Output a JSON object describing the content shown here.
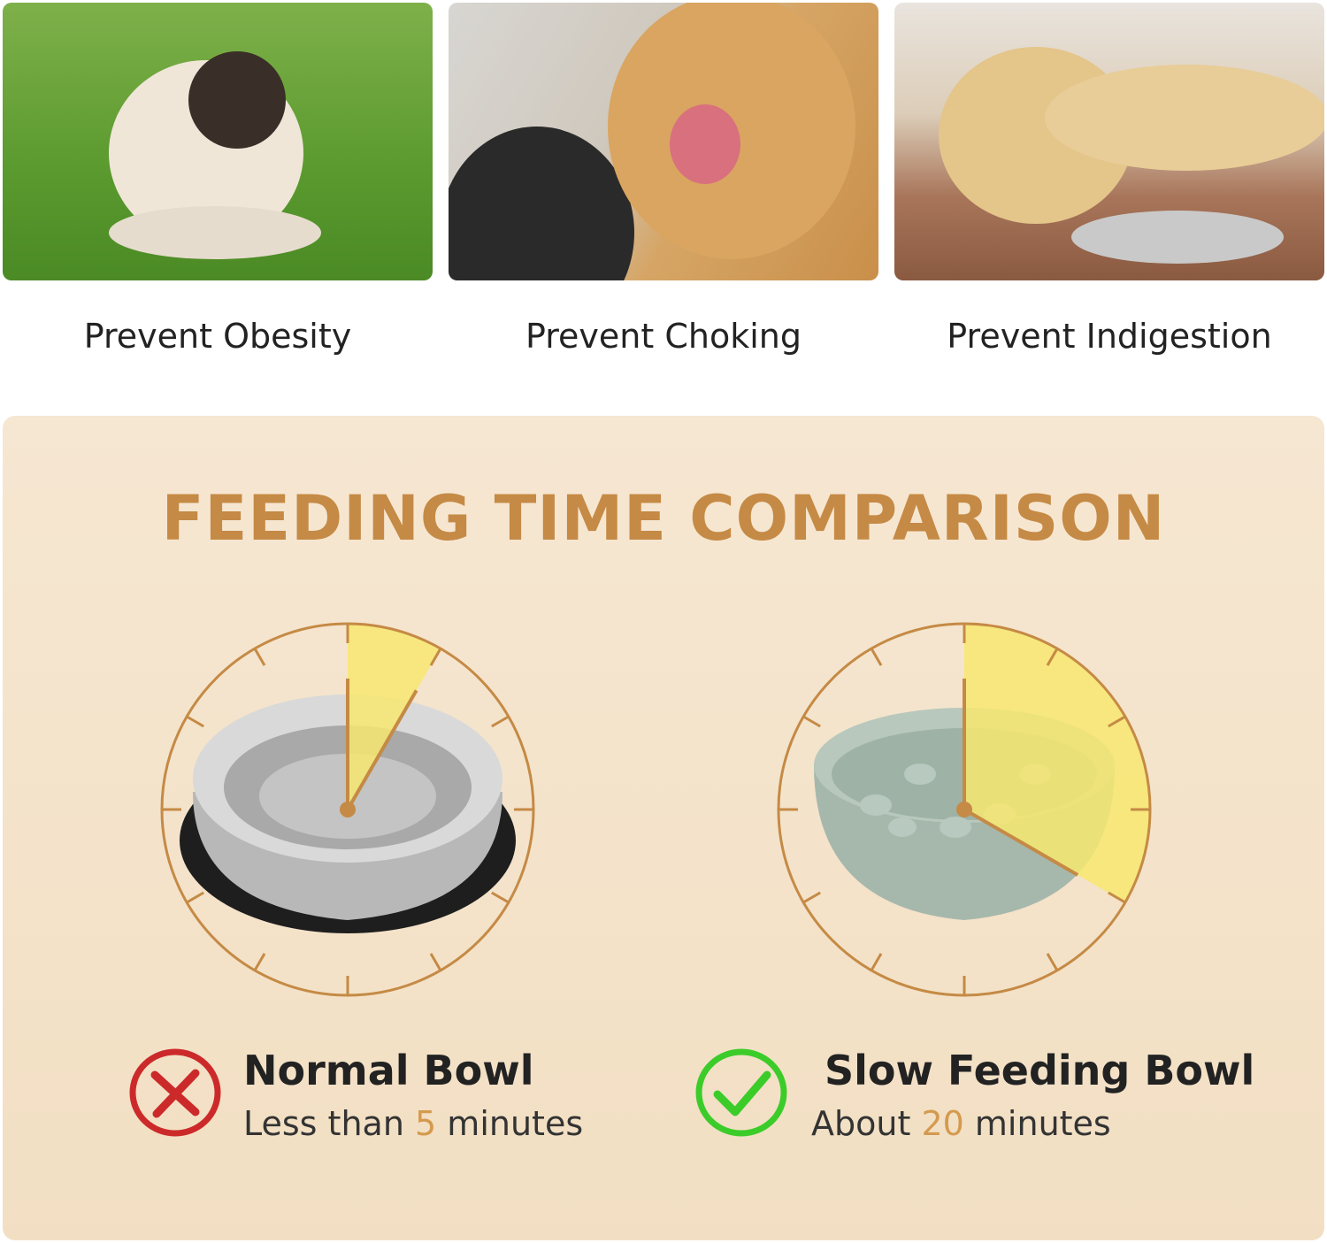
{
  "benefits": [
    {
      "label": "Prevent Obesity",
      "image": "pug-on-grass"
    },
    {
      "label": "Prevent Choking",
      "image": "golden-retriever-mouth-open"
    },
    {
      "label": "Prevent Indigestion",
      "image": "labrador-lying-by-bowl"
    }
  ],
  "comparison": {
    "title": "FEEDING TIME COMPARISON",
    "accent_color": "#c58a45",
    "highlight_color": "#f7e870",
    "normal": {
      "name": "Normal Bowl",
      "prefix": "Less than",
      "minutes": "5",
      "suffix": "minutes",
      "icon": "red-x-circle-icon",
      "status_color": "#cc2a2a",
      "minutes_value": 5
    },
    "slow": {
      "name": "Slow Feeding Bowl",
      "prefix": "About",
      "minutes": "20",
      "suffix": "minutes",
      "icon": "green-check-circle-icon",
      "status_color": "#3ccc2a",
      "minutes_value": 20
    }
  }
}
